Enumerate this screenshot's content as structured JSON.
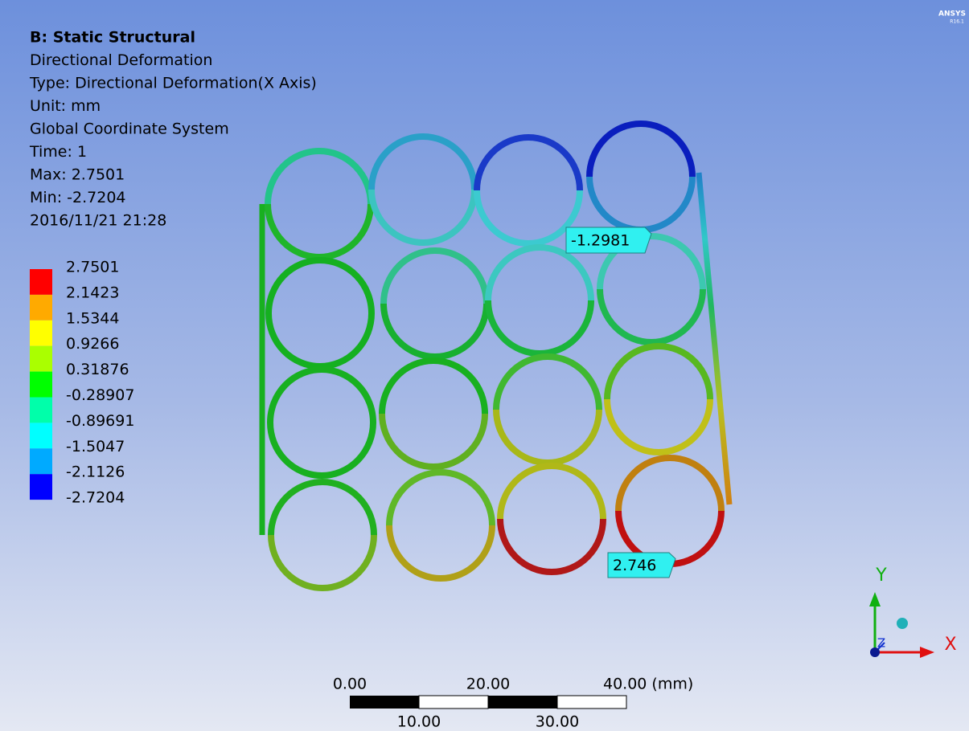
{
  "header": {
    "lines": [
      "B: Static Structural",
      "Directional Deformation",
      "Type: Directional Deformation(X Axis)",
      "Unit: mm",
      "Global Coordinate System",
      "Time: 1",
      "Max: 2.7501",
      "Min: -2.7204",
      "2016/11/21 21:28"
    ]
  },
  "legend": {
    "labels": [
      "2.7501",
      "2.1423",
      "1.5344",
      "0.9266",
      "0.31876",
      "-0.28907",
      "-0.89691",
      "-1.5047",
      "-2.1126",
      "-2.7204"
    ]
  },
  "probes": [
    "-1.2981",
    "2.746"
  ],
  "scale_bar": {
    "top_labels": [
      "0.00",
      "20.00",
      "40.00 (mm)"
    ],
    "bottom_labels": [
      "10.00",
      "30.00"
    ]
  },
  "triad": {
    "x": "X",
    "y": "Y",
    "z": "Z"
  },
  "logo": {
    "name": "ANSYS",
    "version": "R16.1"
  }
}
